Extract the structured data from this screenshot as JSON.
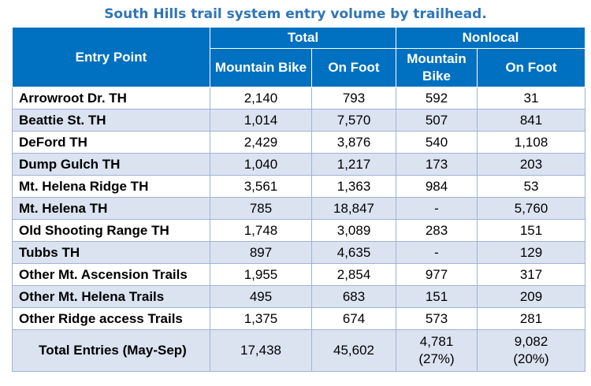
{
  "title": "South Hills trail system entry volume by trailhead.",
  "header": {
    "entry_point": "Entry Point",
    "total": "Total",
    "nonlocal": "Nonlocal",
    "mountain_bike": "Mountain Bike",
    "on_foot": "On Foot"
  },
  "rows": [
    {
      "name": "Arrowroot Dr. TH",
      "total_bike": "2,140",
      "total_foot": "793",
      "nonlocal_bike": "592",
      "nonlocal_foot": "31"
    },
    {
      "name": "Beattie St. TH",
      "total_bike": "1,014",
      "total_foot": "7,570",
      "nonlocal_bike": "507",
      "nonlocal_foot": "841"
    },
    {
      "name": "DeFord TH",
      "total_bike": "2,429",
      "total_foot": "3,876",
      "nonlocal_bike": "540",
      "nonlocal_foot": "1,108"
    },
    {
      "name": "Dump Gulch TH",
      "total_bike": "1,040",
      "total_foot": "1,217",
      "nonlocal_bike": "173",
      "nonlocal_foot": "203"
    },
    {
      "name": "Mt. Helena Ridge TH",
      "total_bike": "3,561",
      "total_foot": "1,363",
      "nonlocal_bike": "984",
      "nonlocal_foot": "53"
    },
    {
      "name": "Mt. Helena TH",
      "total_bike": "785",
      "total_foot": "18,847",
      "nonlocal_bike": "-",
      "nonlocal_foot": "5,760"
    },
    {
      "name": "Old Shooting Range TH",
      "total_bike": "1,748",
      "total_foot": "3,089",
      "nonlocal_bike": "283",
      "nonlocal_foot": "151"
    },
    {
      "name": "Tubbs TH",
      "total_bike": "897",
      "total_foot": "4,635",
      "nonlocal_bike": "-",
      "nonlocal_foot": "129"
    },
    {
      "name": "Other Mt. Ascension Trails",
      "total_bike": "1,955",
      "total_foot": "2,854",
      "nonlocal_bike": "977",
      "nonlocal_foot": "317"
    },
    {
      "name": "Other Mt. Helena Trails",
      "total_bike": "495",
      "total_foot": "683",
      "nonlocal_bike": "151",
      "nonlocal_foot": "209"
    },
    {
      "name": "Other Ridge access Trails",
      "total_bike": "1,375",
      "total_foot": "674",
      "nonlocal_bike": "573",
      "nonlocal_foot": "281"
    }
  ],
  "total": {
    "name": "Total Entries (May-Sep)",
    "total_bike": "17,438",
    "total_foot": "45,602",
    "nonlocal_bike": "4,781",
    "nonlocal_bike_pct": "(27%)",
    "nonlocal_foot": "9,082",
    "nonlocal_foot_pct": "(20%)"
  }
}
